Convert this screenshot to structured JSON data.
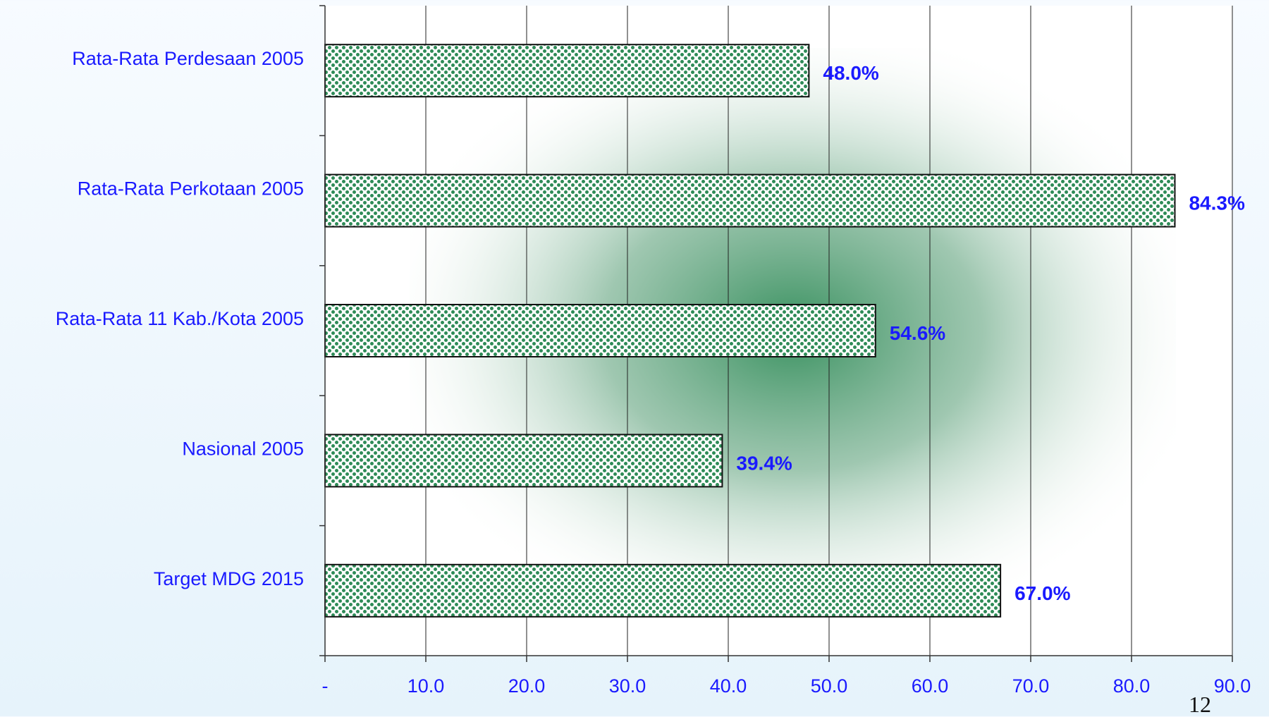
{
  "slide": {
    "page_number": "12"
  },
  "colors": {
    "bar_fill": "#2e8b57",
    "label_color": "#1a1aff",
    "value_label_color": "#1a1aff"
  },
  "chart_data": {
    "type": "bar",
    "orientation": "horizontal",
    "title": "",
    "xlabel": "",
    "ylabel": "",
    "categories": [
      "Rata-Rata Perdesaan 2005",
      "Rata-Rata Perkotaan 2005",
      "Rata-Rata 11 Kab./Kota 2005",
      "Nasional 2005",
      "Target MDG 2015"
    ],
    "values": [
      48.0,
      84.3,
      54.6,
      39.4,
      67.0
    ],
    "value_labels": [
      "48.0%",
      "84.3%",
      "54.6%",
      "39.4%",
      "67.0%"
    ],
    "xlim": [
      0,
      90
    ],
    "x_ticks": [
      0,
      10,
      20,
      30,
      40,
      50,
      60,
      70,
      80,
      90
    ],
    "x_tick_labels": [
      "-",
      "10.0",
      "20.0",
      "30.0",
      "40.0",
      "50.0",
      "60.0",
      "70.0",
      "80.0",
      "90.0"
    ],
    "grid": true,
    "legend": "none"
  }
}
